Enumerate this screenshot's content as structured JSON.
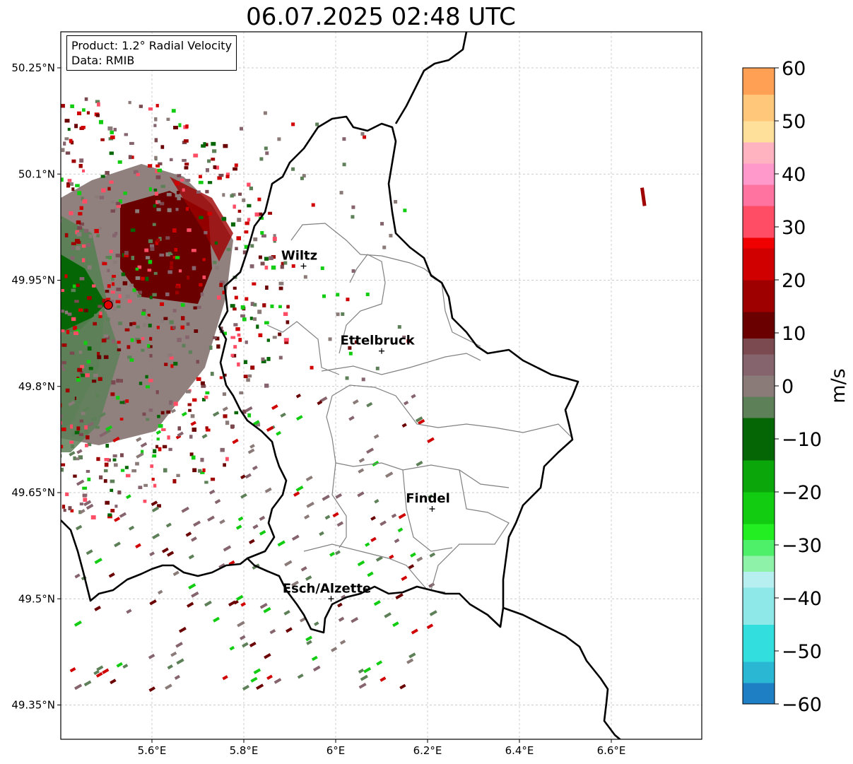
{
  "title": "06.07.2025 02:48 UTC",
  "info": {
    "product": "Product: 1.2° Radial Velocity",
    "data": "Data: RMIB"
  },
  "lat_ticks": [
    {
      "value": 50.25,
      "label": "50.25°N"
    },
    {
      "value": 50.1,
      "label": "50.1°N"
    },
    {
      "value": 49.95,
      "label": "49.95°N"
    },
    {
      "value": 49.8,
      "label": "49.8°N"
    },
    {
      "value": 49.65,
      "label": "49.65°N"
    },
    {
      "value": 49.5,
      "label": "49.5°N"
    },
    {
      "value": 49.35,
      "label": "49.35°N"
    }
  ],
  "lon_ticks": [
    {
      "value": 5.6,
      "label": "5.6°E"
    },
    {
      "value": 5.8,
      "label": "5.8°E"
    },
    {
      "value": 6.0,
      "label": "6°E"
    },
    {
      "value": 6.2,
      "label": "6.2°E"
    },
    {
      "value": 6.4,
      "label": "6.4°E"
    },
    {
      "value": 6.6,
      "label": "6.6°E"
    }
  ],
  "cities": [
    {
      "name": "Wiltz",
      "lon": 5.93,
      "lat": 49.97
    },
    {
      "name": "Ettelbruck",
      "lon": 6.1,
      "lat": 49.85
    },
    {
      "name": "Findel",
      "lon": 6.21,
      "lat": 49.627
    },
    {
      "name": "Esch/Alzette",
      "lon": 5.99,
      "lat": 49.5
    }
  ],
  "radar": {
    "lon": 5.505,
    "lat": 49.915
  },
  "colorbar": {
    "label": "m/s",
    "min": -60,
    "max": 60,
    "ticks": [
      {
        "value": 60,
        "label": "60"
      },
      {
        "value": 50,
        "label": "50"
      },
      {
        "value": 40,
        "label": "40"
      },
      {
        "value": 30,
        "label": "30"
      },
      {
        "value": 20,
        "label": "20"
      },
      {
        "value": 10,
        "label": "10"
      },
      {
        "value": 0,
        "label": "0"
      },
      {
        "value": -10,
        "label": "−10"
      },
      {
        "value": -20,
        "label": "−20"
      },
      {
        "value": -30,
        "label": "−30"
      },
      {
        "value": -40,
        "label": "−40"
      },
      {
        "value": -50,
        "label": "−50"
      },
      {
        "value": -60,
        "label": "−60"
      }
    ],
    "stops": [
      {
        "from": -60,
        "to": -56,
        "color": "#1f7fc4"
      },
      {
        "from": -56,
        "to": -52,
        "color": "#2ab7d3"
      },
      {
        "from": -52,
        "to": -45,
        "color": "#33dede"
      },
      {
        "from": -45,
        "to": -38,
        "color": "#8ee8e8"
      },
      {
        "from": -38,
        "to": -35,
        "color": "#b7eef0"
      },
      {
        "from": -35,
        "to": -32,
        "color": "#8ef2a8"
      },
      {
        "from": -32,
        "to": -29,
        "color": "#4ef06a"
      },
      {
        "from": -29,
        "to": -26,
        "color": "#22ee22"
      },
      {
        "from": -26,
        "to": -20,
        "color": "#11cc11"
      },
      {
        "from": -20,
        "to": -14,
        "color": "#0aa60a"
      },
      {
        "from": -14,
        "to": -6,
        "color": "#046604"
      },
      {
        "from": -6,
        "to": -2,
        "color": "#5e8058"
      },
      {
        "from": -2,
        "to": 2,
        "color": "#8a7a78"
      },
      {
        "from": 2,
        "to": 6,
        "color": "#86646e"
      },
      {
        "from": 6,
        "to": 9,
        "color": "#7a4a50"
      },
      {
        "from": 9,
        "to": 14,
        "color": "#6a0000"
      },
      {
        "from": 14,
        "to": 20,
        "color": "#9e0000"
      },
      {
        "from": 20,
        "to": 26,
        "color": "#d00000"
      },
      {
        "from": 26,
        "to": 28,
        "color": "#f00000"
      },
      {
        "from": 28,
        "to": 34,
        "color": "#ff4d66"
      },
      {
        "from": 34,
        "to": 38,
        "color": "#ff73a0"
      },
      {
        "from": 38,
        "to": 42,
        "color": "#ff99cc"
      },
      {
        "from": 42,
        "to": 46,
        "color": "#ffb3c0"
      },
      {
        "from": 46,
        "to": 50,
        "color": "#ffe09a"
      },
      {
        "from": 50,
        "to": 55,
        "color": "#ffc77a"
      },
      {
        "from": 55,
        "to": 60,
        "color": "#ffa055"
      }
    ]
  }
}
